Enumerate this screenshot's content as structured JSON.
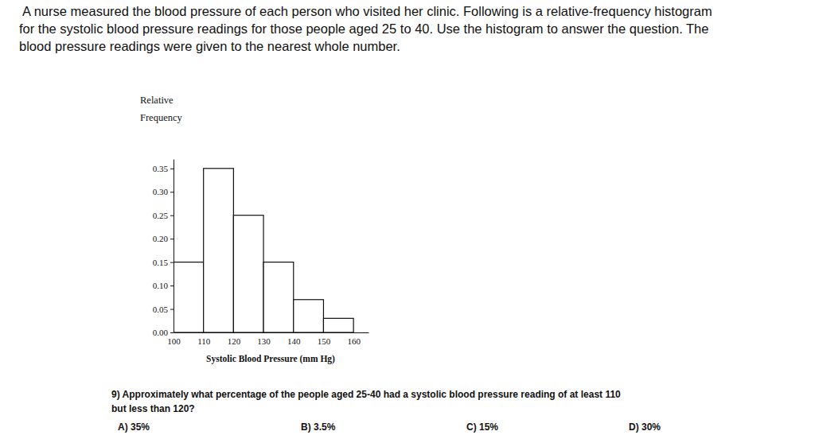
{
  "chart_data": {
    "type": "histogram",
    "bins": [
      100,
      110,
      120,
      130,
      140,
      150,
      160
    ],
    "values": [
      0.15,
      0.35,
      0.25,
      0.15,
      0.07,
      0.03
    ],
    "color": "#ffffff",
    "xlim": [
      100,
      165
    ],
    "xticks": [
      100,
      110,
      120,
      130,
      140,
      150,
      160
    ],
    "ylim": [
      0,
      0.37
    ],
    "yticks": [
      {
        "value": 0,
        "label": "0.00"
      },
      0.05,
      {
        "value": 0.1,
        "label": "0.10"
      },
      0.15,
      {
        "value": 0.2,
        "label": "0.20"
      },
      0.25,
      {
        "value": 0.3,
        "label": "0.30"
      },
      0.35
    ],
    "x_label": "Systolic Blood Pressure (mm Hg)",
    "y_label": [
      "Relative",
      "Frequency"
    ]
  },
  "intro": {
    "lines": [
      "A nurse measured the blood pressure of each person who visited her clinic.  Following is a relative-frequency histogram",
      "for the systolic blood pressure readings for those people aged 25 to 40. Use the histogram to answer the question. The",
      "blood pressure readings were given to the nearest whole number."
    ]
  },
  "question": {
    "lines": [
      "9) Approximately what percentage of the people aged 25-40 had a systolic blood pressure reading of at least 110",
      "but less than 120?"
    ],
    "options": [
      "A) 35%",
      "B) 3.5%",
      "C) 15%",
      "D) 30%"
    ]
  }
}
